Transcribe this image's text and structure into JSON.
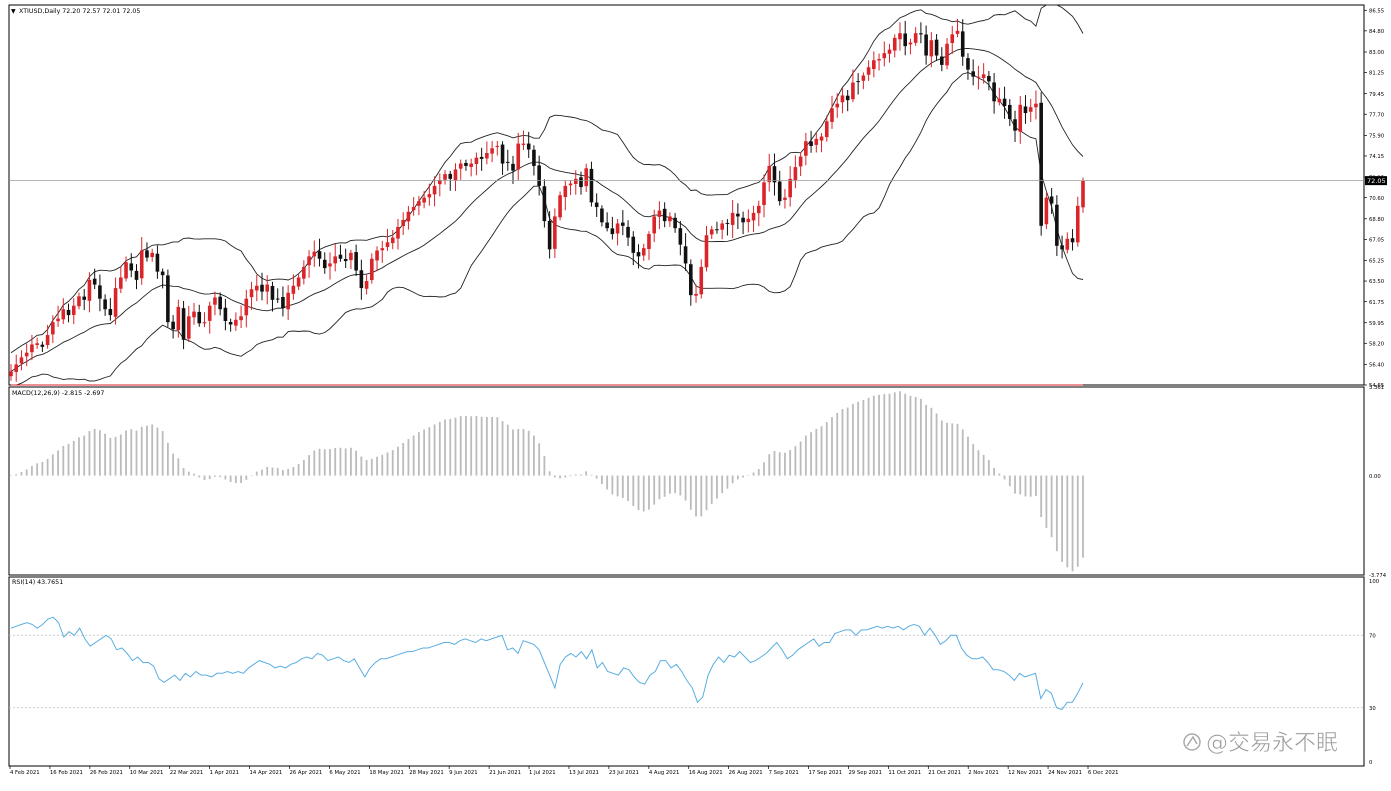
{
  "watermark": "@交易永不眠",
  "colors": {
    "bull": "#d9242a",
    "bear": "#111111",
    "band": "#222222",
    "macd_hist": "#bbbbbb",
    "macd_signal": "#d9242a",
    "rsi_line": "#5aaee0",
    "grid_level": "#c8c8c8",
    "frame": "#000000",
    "price_tag_bg": "#000000",
    "price_tag_text": "#ffffff"
  },
  "chart_data": {
    "type": "candlestick",
    "price_panel": {
      "header": "XTIUSD,Daily  72.20 72.57 72.01 72.05",
      "symbol_marker": "▼",
      "y_ticks": [
        "86.55",
        "84.80",
        "83.00",
        "81.25",
        "79.45",
        "77.70",
        "75.90",
        "74.15",
        "72.35",
        "70.60",
        "68.80",
        "67.05",
        "65.25",
        "63.50",
        "61.75",
        "59.95",
        "58.20",
        "56.40",
        "54.65"
      ],
      "y_range": [
        54.65,
        87.0
      ],
      "current_price": "72.05",
      "current_price_value": 72.05,
      "bollinger_bands": "20-period upper / middle / lower bands"
    },
    "macd_panel": {
      "header": "MACD(12,26,9) -2.815 -2.697",
      "y_ticks": [
        "3.361",
        "0.00",
        "-3.774"
      ],
      "y_range": [
        -3.774,
        3.361
      ]
    },
    "rsi_panel": {
      "header": "RSI(14) 43.7651",
      "y_ticks": [
        "100",
        "70",
        "30",
        "0"
      ],
      "levels": [
        70,
        30
      ],
      "y_range": [
        0,
        100
      ]
    },
    "x_labels": [
      "4 Feb 2021",
      "16 Feb 2021",
      "26 Feb 2021",
      "10 Mar 2021",
      "22 Mar 2021",
      "1 Apr 2021",
      "14 Apr 2021",
      "26 Apr 2021",
      "6 May 2021",
      "18 May 2021",
      "28 May 2021",
      "9 Jun 2021",
      "21 Jun 2021",
      "1 Jul 2021",
      "13 Jul 2021",
      "23 Jul 2021",
      "4 Aug 2021",
      "16 Aug 2021",
      "26 Aug 2021",
      "7 Sep 2021",
      "17 Sep 2021",
      "29 Sep 2021",
      "11 Oct 2021",
      "21 Oct 2021",
      "2 Nov 2021",
      "12 Nov 2021",
      "24 Nov 2021",
      "6 Dec 2021"
    ],
    "closes": [
      55.8,
      56.4,
      57.0,
      57.4,
      58.1,
      58.2,
      57.9,
      58.9,
      60.0,
      60.3,
      61.1,
      60.6,
      61.4,
      62.2,
      61.9,
      63.6,
      63.2,
      62.0,
      61.1,
      60.6,
      62.9,
      63.8,
      65.1,
      64.4,
      63.6,
      66.1,
      65.5,
      65.9,
      64.3,
      64.0,
      60.0,
      59.4,
      61.3,
      58.5,
      60.5,
      60.9,
      59.9,
      60.0,
      61.4,
      62.1,
      61.1,
      60.1,
      59.8,
      60.2,
      60.5,
      62.0,
      62.8,
      63.1,
      62.6,
      63.2,
      61.9,
      62.0,
      61.2,
      62.5,
      63.1,
      63.8,
      64.7,
      65.6,
      66.0,
      65.4,
      64.6,
      65.0,
      65.6,
      65.4,
      65.2,
      65.9,
      64.4,
      62.9,
      63.5,
      65.4,
      66.1,
      66.3,
      66.8,
      67.2,
      68.1,
      68.7,
      69.4,
      69.8,
      70.3,
      70.6,
      70.9,
      71.6,
      72.1,
      72.6,
      72.2,
      73.0,
      73.5,
      73.3,
      73.5,
      74.0,
      73.9,
      74.4,
      74.8,
      75.0,
      73.5,
      73.6,
      72.9,
      75.2,
      75.2,
      74.7,
      73.3,
      71.6,
      68.6,
      66.2,
      69.0,
      70.8,
      71.6,
      71.8,
      72.2,
      71.5,
      73.1,
      70.2,
      69.8,
      68.5,
      68.0,
      67.5,
      68.4,
      68.2,
      67.2,
      65.9,
      65.6,
      66.3,
      67.5,
      69.0,
      69.5,
      68.6,
      69.0,
      68.0,
      66.6,
      65.0,
      62.3,
      62.4,
      64.7,
      67.4,
      67.9,
      67.9,
      68.4,
      68.4,
      69.3,
      69.0,
      68.5,
      68.8,
      69.3,
      69.9,
      71.9,
      73.3,
      71.9,
      70.3,
      70.6,
      72.2,
      73.2,
      74.1,
      75.4,
      75.0,
      75.6,
      75.8,
      77.1,
      78.2,
      78.6,
      79.3,
      78.9,
      80.4,
      80.5,
      81.0,
      81.7,
      82.3,
      82.4,
      82.9,
      83.2,
      84.2,
      84.6,
      83.5,
      83.8,
      84.6,
      84.5,
      82.7,
      84.0,
      82.7,
      81.9,
      83.7,
      84.5,
      84.8,
      82.6,
      81.5,
      80.9,
      80.9,
      81.1,
      80.5,
      78.8,
      79.0,
      78.4,
      77.3,
      76.3,
      78.5,
      77.8,
      78.3,
      78.6,
      68.2,
      70.6,
      70.1,
      66.5,
      66.2,
      67.1,
      66.8,
      69.9,
      72.05
    ],
    "rsi_values": [
      74,
      75,
      76,
      77,
      76,
      74,
      76,
      79,
      80,
      77,
      69,
      72,
      70,
      74,
      68,
      64,
      66,
      68,
      70,
      68,
      62,
      63,
      60,
      56,
      58,
      55,
      55,
      53,
      46,
      44,
      46,
      48,
      45,
      49,
      47,
      50,
      48,
      48,
      47,
      49,
      49,
      50,
      49,
      50,
      49,
      52,
      54,
      56,
      55,
      54,
      52,
      53,
      52,
      54,
      55,
      57,
      58,
      57,
      60,
      59,
      56,
      57,
      58,
      56,
      55,
      57,
      52,
      47,
      52,
      55,
      57,
      57,
      58,
      59,
      60,
      61,
      61,
      62,
      63,
      63,
      64,
      65,
      66,
      66,
      65,
      67,
      68,
      67,
      66,
      68,
      67,
      68,
      69,
      70,
      62,
      63,
      60,
      67,
      66,
      65,
      62,
      55,
      48,
      41,
      54,
      58,
      60,
      58,
      61,
      57,
      62,
      52,
      55,
      50,
      49,
      48,
      52,
      51,
      47,
      44,
      43,
      48,
      50,
      56,
      56,
      52,
      54,
      50,
      45,
      41,
      33,
      36,
      48,
      54,
      58,
      55,
      59,
      58,
      61,
      58,
      55,
      56,
      58,
      60,
      63,
      66,
      62,
      57,
      59,
      62,
      64,
      66,
      68,
      64,
      66,
      66,
      71,
      72,
      73,
      73,
      70,
      73,
      73,
      74,
      75,
      74,
      75,
      74,
      75,
      73,
      75,
      76,
      75,
      70,
      74,
      70,
      65,
      67,
      70,
      70,
      63,
      59,
      57,
      57,
      58,
      55,
      51,
      51,
      50,
      48,
      45,
      49,
      47,
      48,
      49,
      35,
      40,
      38,
      30,
      29,
      33,
      33,
      38,
      43.77
    ]
  }
}
